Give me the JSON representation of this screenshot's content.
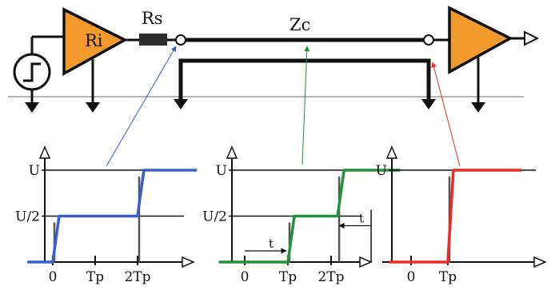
{
  "colors": {
    "amp": "#f39a2e",
    "ink": "#111111",
    "blue": "#3a5fcd",
    "green": "#21913a",
    "red": "#ee2a24",
    "ground_line": "#888888",
    "resistor": "#2a2a2a"
  },
  "circuit": {
    "source_amp_label": "Ri",
    "series_resistor_label": "Rs",
    "line_label": "Zc"
  },
  "plots": {
    "source": {
      "type": "line",
      "color_key": "blue",
      "y_tick_labels": [
        "U",
        "U/2"
      ],
      "x_tick_labels": [
        "0",
        "Tp",
        "2Tp"
      ],
      "series": [
        {
          "x": [
            -0.6,
            0,
            0.15,
            2,
            2.15,
            3.4
          ],
          "y": [
            0,
            0,
            0.5,
            0.5,
            1,
            1
          ]
        }
      ]
    },
    "middle": {
      "type": "line",
      "color_key": "green",
      "y_tick_labels": [
        "U",
        "U/2"
      ],
      "x_tick_labels": [
        "0",
        "Tp",
        "2Tp"
      ],
      "marker_label_a": "t",
      "marker_label_b": "t",
      "series": [
        {
          "x": [
            -0.6,
            1,
            1.15,
            2.15,
            2.3,
            3.6
          ],
          "y": [
            0,
            0,
            0.5,
            0.5,
            1,
            1
          ]
        }
      ]
    },
    "load": {
      "type": "line",
      "color_key": "red",
      "y_tick_labels": [
        "U"
      ],
      "x_tick_labels": [
        "0",
        "Tp"
      ],
      "series": [
        {
          "x": [
            -0.6,
            1,
            1.15,
            3.0
          ],
          "y": [
            0,
            0,
            1,
            1
          ]
        }
      ]
    }
  }
}
